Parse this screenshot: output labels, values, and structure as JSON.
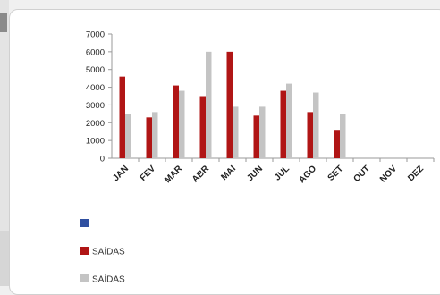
{
  "chart_data": {
    "type": "bar",
    "categories": [
      "JAN",
      "FEV",
      "MAR",
      "ABR",
      "MAI",
      "JUN",
      "JUL",
      "AGO",
      "SET",
      "OUT",
      "NOV",
      "DEZ"
    ],
    "series": [
      {
        "name": "",
        "color": "#2f4fa0",
        "values": [
          null,
          null,
          null,
          null,
          null,
          null,
          null,
          null,
          null,
          null,
          null,
          null
        ]
      },
      {
        "name": "SAÍDAS",
        "color": "#b01515",
        "values": [
          4600,
          2300,
          4100,
          3500,
          6000,
          2400,
          3800,
          2600,
          1600,
          null,
          null,
          null
        ]
      },
      {
        "name": "SAÍDAS",
        "color": "#c4c4c4",
        "values": [
          2500,
          2600,
          3800,
          6000,
          2900,
          2900,
          4200,
          3700,
          2500,
          null,
          null,
          null
        ]
      }
    ],
    "ylim": [
      0,
      7000
    ],
    "yticks": [
      0,
      1000,
      2000,
      3000,
      4000,
      5000,
      6000,
      7000
    ],
    "grid": false,
    "legend_position": "bottom-left"
  }
}
